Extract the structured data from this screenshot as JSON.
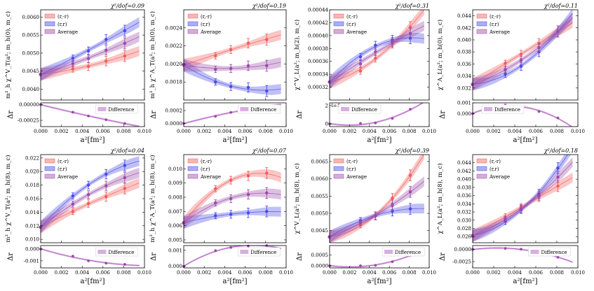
{
  "figure": {
    "x_label": "a²[fm²]",
    "x_ticks": [
      "0.000",
      "0.002",
      "0.004",
      "0.006",
      "0.008",
      "0.010"
    ],
    "x_range": [
      0,
      0.01
    ],
    "legend_labels": [
      "(r,-r)",
      "(r,r)",
      "Average"
    ],
    "diff_legend_label": "Difference",
    "delta_label": "Δr",
    "colors": {
      "red": "#f25c5c",
      "blue": "#4a4ae6",
      "purple": "#9b4aa8",
      "diff": "#b060c0"
    }
  },
  "chart_data": [
    {
      "type": "line",
      "id": "p1",
      "chi": "χ²/dof=0.09",
      "ylabel": "m²_h χ^V_T(a²; m_h(0), m_c)",
      "ylim": [
        0.0037,
        0.0062
      ],
      "yticks": [
        0.004,
        0.0045,
        0.005,
        0.0055,
        0.006
      ],
      "ytick_labels": [
        "0.0040",
        "0.0045",
        "0.0050",
        "0.0055",
        "0.0060"
      ],
      "x": [
        0.0031,
        0.0046,
        0.0063,
        0.0081
      ],
      "series": [
        {
          "name": "(r,-r)",
          "values": [
            0.00456,
            0.00463,
            0.00478,
            0.00492
          ]
        },
        {
          "name": "(r,r)",
          "values": [
            0.00486,
            0.00506,
            0.00538,
            0.00562
          ]
        },
        {
          "name": "Average",
          "values": [
            0.00471,
            0.00485,
            0.00508,
            0.00527
          ]
        }
      ],
      "point0": 0.00441,
      "diff": {
        "ylim": [
          -0.00035,
          3e-05
        ],
        "yticks": [
          0,
          -0.00025
        ],
        "ytick_labels": [
          "0.00000",
          "-0.00025"
        ],
        "values": [
          -0.00012,
          -0.00018,
          -0.00024,
          -0.0003
        ]
      }
    },
    {
      "type": "line",
      "id": "p2",
      "chi": "χ²/dof=0.19",
      "ylabel": "m²_h χ^A_T(a²; m_h(0), m_c)",
      "ylim": [
        0.0016,
        0.0026
      ],
      "yticks": [
        0.0018,
        0.002,
        0.0022,
        0.0024
      ],
      "ytick_labels": [
        "0.0018",
        "0.0020",
        "0.0022",
        "0.0024"
      ],
      "x": [
        0.0031,
        0.0046,
        0.0063,
        0.0081
      ],
      "series": [
        {
          "name": "(r,-r)",
          "values": [
            0.00209,
            0.00216,
            0.00223,
            0.00227
          ]
        },
        {
          "name": "(r,r)",
          "values": [
            0.0018,
            0.00175,
            0.00174,
            0.0017
          ]
        },
        {
          "name": "Average",
          "values": [
            0.00194,
            0.00195,
            0.00198,
            0.00198
          ]
        }
      ],
      "point0": 0.00199,
      "diff": {
        "ylim": [
          -5e-05,
          0.00032
        ],
        "yticks": [
          0,
          0.0002
        ],
        "ytick_labels": [
          "0.0000",
          "0.0002"
        ],
        "values": [
          0.00011,
          0.00017,
          0.00023,
          0.00026
        ]
      }
    },
    {
      "type": "line",
      "id": "p3",
      "chi": "χ²/dof=0.31",
      "ylabel": "χ^V_L(a²; m_h(2), m_c)",
      "ylim": [
        0.0003,
        0.00044
      ],
      "yticks": [
        0.00032,
        0.00034,
        0.00036,
        0.00038,
        0.0004,
        0.00042,
        0.00044
      ],
      "ytick_labels": [
        "0.00032",
        "0.00034",
        "0.00036",
        "0.00038",
        "0.00040",
        "0.00042",
        "0.00044"
      ],
      "x": [
        0.0031,
        0.0046,
        0.0063,
        0.0081
      ],
      "series": [
        {
          "name": "(r,-r)",
          "values": [
            0.000345,
            0.000365,
            0.000388,
            0.000413
          ]
        },
        {
          "name": "(r,r)",
          "values": [
            0.000367,
            0.000385,
            0.000393,
            0.000396
          ]
        },
        {
          "name": "Average",
          "values": [
            0.000356,
            0.000375,
            0.00039,
            0.000403
          ]
        }
      ],
      "point0": 0.000328,
      "diff": {
        "exponent": "1e-5",
        "ylim": [
          -0.3,
          2.3
        ],
        "yticks": [
          0,
          2
        ],
        "ytick_labels": [
          "0",
          "2"
        ],
        "values": [
          0.05,
          0.1,
          0.6,
          1.6
        ]
      }
    },
    {
      "type": "line",
      "id": "p4",
      "chi": "χ²/dof=0.11",
      "ylabel": "χ^A_L(a²; m_h(0), m_c)",
      "ylim": [
        0.03,
        0.045
      ],
      "yticks": [
        0.032,
        0.034,
        0.036,
        0.038,
        0.04,
        0.042,
        0.044
      ],
      "ytick_labels": [
        "0.032",
        "0.034",
        "0.036",
        "0.038",
        "0.040",
        "0.042",
        "0.044"
      ],
      "x": [
        0.0031,
        0.0046,
        0.0063,
        0.0081
      ],
      "series": [
        {
          "name": "(r,-r)",
          "values": [
            0.0361,
            0.0376,
            0.0394,
            0.0414
          ]
        },
        {
          "name": "(r,r)",
          "values": [
            0.0343,
            0.0356,
            0.038,
            0.0414
          ]
        },
        {
          "name": "Average",
          "values": [
            0.0351,
            0.0366,
            0.0387,
            0.0414
          ]
        }
      ],
      "point0": 0.0326,
      "diff": {
        "ylim": [
          -0.0012,
          0.001
        ],
        "yticks": [
          0.001,
          0
        ],
        "ytick_labels": [
          "0.001",
          "0.000"
        ],
        "values": [
          0.0008,
          0.0006,
          0.0002,
          -0.0004
        ]
      }
    },
    {
      "type": "line",
      "id": "p5",
      "chi": "χ²/dof=0.04",
      "ylabel": "m²_h χ^V_T(a²; m_h(8), m_c)",
      "ylim": [
        0.0095,
        0.0225
      ],
      "yticks": [
        0.01,
        0.012,
        0.014,
        0.016,
        0.018,
        0.02,
        0.022
      ],
      "ytick_labels": [
        "0.010",
        "0.012",
        "0.014",
        "0.016",
        "0.018",
        "0.020",
        "0.022"
      ],
      "x": [
        0.0031,
        0.0046,
        0.0063,
        0.0081
      ],
      "series": [
        {
          "name": "(r,-r)",
          "values": [
            0.0141,
            0.0153,
            0.0163,
            0.0175
          ]
        },
        {
          "name": "(r,r)",
          "values": [
            0.0164,
            0.018,
            0.0196,
            0.0209
          ]
        },
        {
          "name": "Average",
          "values": [
            0.0152,
            0.0166,
            0.0179,
            0.0191
          ]
        }
      ],
      "point0": 0.0118,
      "diff": {
        "ylim": [
          -0.0016,
          0.0003
        ],
        "yticks": [
          0,
          -0.001
        ],
        "ytick_labels": [
          "0.000",
          "-0.001"
        ],
        "values": [
          -0.0006,
          -0.001,
          -0.0012,
          -0.0013
        ]
      }
    },
    {
      "type": "line",
      "id": "p6",
      "chi": "χ²/dof=0.07",
      "ylabel": "m²_h χ^A_T(a²; m_h(8), m_c)",
      "ylim": [
        0.0048,
        0.011
      ],
      "yticks": [
        0.005,
        0.006,
        0.007,
        0.008,
        0.009,
        0.01
      ],
      "ytick_labels": [
        "0.005",
        "0.006",
        "0.007",
        "0.008",
        "0.009",
        "0.010"
      ],
      "x": [
        0.0031,
        0.0046,
        0.0063,
        0.0081
      ],
      "series": [
        {
          "name": "(r,-r)",
          "values": [
            0.0086,
            0.0092,
            0.0095,
            0.0097
          ]
        },
        {
          "name": "(r,r)",
          "values": [
            0.0067,
            0.0068,
            0.0069,
            0.007
          ]
        },
        {
          "name": "Average",
          "values": [
            0.0076,
            0.0079,
            0.0082,
            0.0083
          ]
        }
      ],
      "point0": 0.0062,
      "diff": {
        "ylim": [
          -0.0001,
          0.0013
        ],
        "yticks": [
          0.001,
          0
        ],
        "ytick_labels": [
          "0.001",
          "0.000"
        ],
        "values": [
          0.00098,
          0.00118,
          0.00127,
          0.0013
        ]
      }
    },
    {
      "type": "line",
      "id": "p7",
      "chi": "χ²/dof=0.39",
      "ylabel": "χ^V_L(a²; m_h(8), m_c)",
      "ylim": [
        0.00415,
        0.0067
      ],
      "yticks": [
        0.0045,
        0.005,
        0.0055,
        0.006,
        0.0065
      ],
      "ytick_labels": [
        "0.0045",
        "0.0050",
        "0.0055",
        "0.0060",
        "0.0065"
      ],
      "x": [
        0.0031,
        0.0046,
        0.0063,
        0.0081
      ],
      "series": [
        {
          "name": "(r,-r)",
          "values": [
            0.00467,
            0.00492,
            0.00544,
            0.0061
          ]
        },
        {
          "name": "(r,r)",
          "values": [
            0.00479,
            0.00493,
            0.00506,
            0.00513
          ]
        },
        {
          "name": "Average",
          "values": [
            0.00473,
            0.00493,
            0.00525,
            0.00562
          ]
        }
      ],
      "point0": 0.00432,
      "diff": {
        "ylim": [
          -0.0001,
          0.00095
        ],
        "yticks": [
          0.0005,
          0
        ],
        "ytick_labels": [
          "0.0005",
          "0.0000"
        ],
        "values": [
          0.0,
          2e-05,
          0.00019,
          0.00049
        ]
      }
    },
    {
      "type": "line",
      "id": "p8",
      "chi": "χ²/dof=0.18",
      "ylabel": "χ^A_L(a²; m_h(8), m_c)",
      "ylim": [
        0.0245,
        0.046
      ],
      "yticks": [
        0.026,
        0.028,
        0.03,
        0.032,
        0.034,
        0.036,
        0.038,
        0.04,
        0.042,
        0.044
      ],
      "ytick_labels": [
        "0.026",
        "0.028",
        "0.030",
        "0.032",
        "0.034",
        "0.036",
        "0.038",
        "0.040",
        "0.042",
        "0.044"
      ],
      "x": [
        0.0031,
        0.0046,
        0.0063,
        0.0081
      ],
      "series": [
        {
          "name": "(r,-r)",
          "values": [
            0.0308,
            0.0331,
            0.0357,
            0.0383
          ]
        },
        {
          "name": "(r,r)",
          "values": [
            0.0297,
            0.0326,
            0.0364,
            0.0427
          ]
        },
        {
          "name": "Average",
          "values": [
            0.0302,
            0.0328,
            0.036,
            0.0405
          ]
        }
      ],
      "point0": 0.0262,
      "diff": {
        "ylim": [
          -0.0038,
          0.0008
        ],
        "yticks": [
          0,
          -0.0025
        ],
        "ytick_labels": [
          "0.0000",
          "-0.0025"
        ],
        "values": [
          0.0002,
          5e-05,
          -0.0006,
          -0.0016
        ]
      }
    }
  ]
}
